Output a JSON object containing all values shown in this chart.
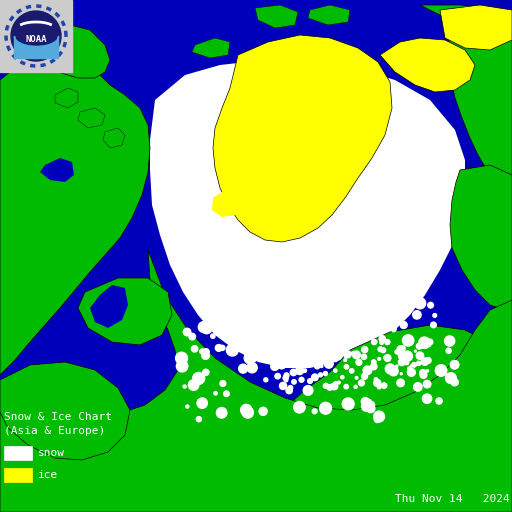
{
  "background_color": "#0000BB",
  "ocean_color": "#0000BB",
  "land_color": "#00BB00",
  "snow_color": "#FFFFFF",
  "ice_color": "#FFFF00",
  "border_color": "#000000",
  "text_color": "#FFFFFF",
  "title_line1": "Snow & Ice Chart",
  "title_line2": "(Asia & Europe)",
  "date_text": "Thu Nov 14   2024",
  "legend_snow_label": "snow",
  "legend_ice_label": "ice",
  "fig_width": 5.12,
  "fig_height": 5.12,
  "dpi": 100,
  "logo_bg": "#DDDDDD",
  "logo_dark": "#1a1a6e",
  "logo_cyan": "#00AAEE",
  "logo_light_blue": "#55AADD"
}
